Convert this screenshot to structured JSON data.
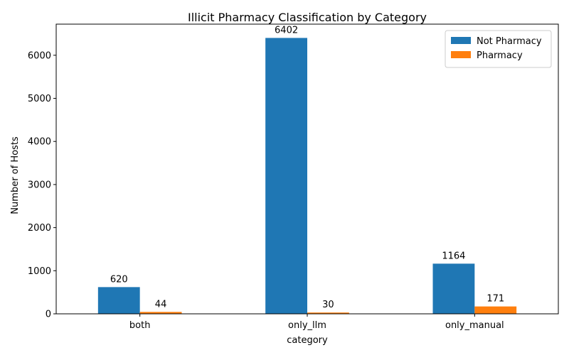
{
  "chart_data": {
    "type": "bar",
    "title": "Illicit Pharmacy Classification by Category",
    "xlabel": "category",
    "ylabel": "Number of Hosts",
    "categories": [
      "both",
      "only_llm",
      "only_manual"
    ],
    "series": [
      {
        "name": "Not Pharmacy",
        "values": [
          620,
          6402,
          1164
        ],
        "color": "#1f77b4"
      },
      {
        "name": "Pharmacy",
        "values": [
          44,
          30,
          171
        ],
        "color": "#ff7f0e"
      }
    ],
    "ylim": [
      0,
      6722
    ],
    "yticks": [
      0,
      1000,
      2000,
      3000,
      4000,
      5000,
      6000
    ],
    "legend_position": "top-right",
    "grid": false
  }
}
